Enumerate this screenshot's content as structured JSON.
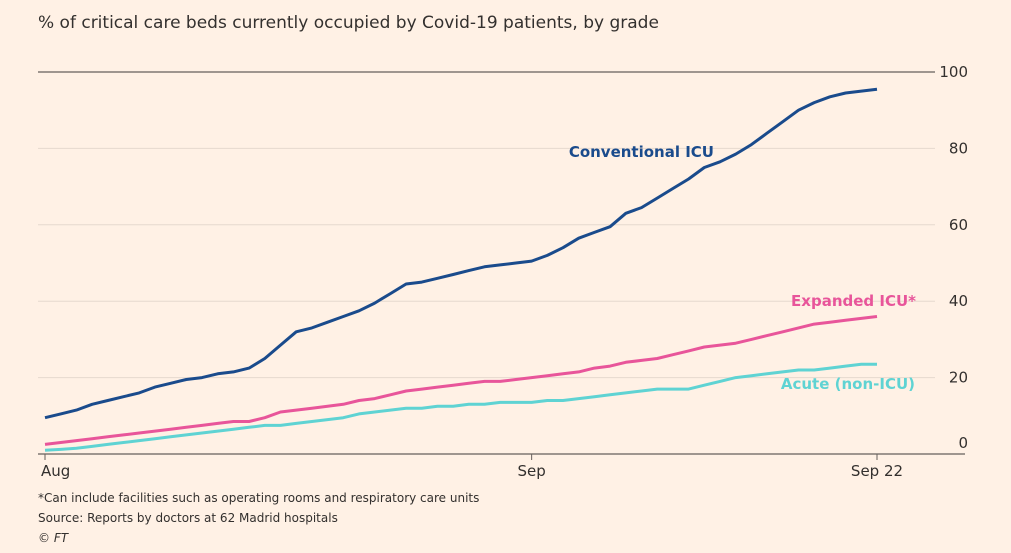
{
  "chart_data": {
    "type": "line",
    "title": "% of critical care beds currently occupied by Covid-19 patients, by grade",
    "categories": [
      "Aug",
      null,
      null,
      null,
      null,
      null,
      null,
      null,
      null,
      null,
      null,
      null,
      null,
      null,
      null,
      null,
      null,
      null,
      null,
      null,
      null,
      null,
      null,
      null,
      null,
      null,
      null,
      null,
      null,
      null,
      null,
      "Sep",
      null,
      null,
      null,
      null,
      null,
      null,
      null,
      null,
      null,
      null,
      null,
      null,
      null,
      null,
      null,
      null,
      null,
      null,
      null,
      null,
      null,
      "Sep 22"
    ],
    "series": [
      {
        "name": "Conventional ICU",
        "color": "#1a4b8c",
        "values": [
          9.5,
          10.5,
          11.5,
          13,
          14,
          15,
          16,
          17.5,
          18.5,
          19.5,
          20,
          21,
          21.5,
          22.5,
          25,
          28.5,
          32,
          33,
          34.5,
          36,
          37.5,
          39.5,
          42,
          44.5,
          45,
          46,
          47,
          48,
          49,
          49.5,
          50,
          50.5,
          52,
          54,
          56.5,
          58,
          59.5,
          63,
          64.5,
          67,
          69.5,
          72,
          75,
          76.5,
          78.5,
          81,
          84,
          87,
          90,
          92,
          93.5,
          94.5,
          95,
          95.5
        ]
      },
      {
        "name": "Expanded ICU*",
        "color": "#e8559a",
        "values": [
          2.5,
          3,
          3.5,
          4,
          4.5,
          5,
          5.5,
          6,
          6.5,
          7,
          7.5,
          8,
          8.5,
          8.5,
          9.5,
          11,
          11.5,
          12,
          12.5,
          13,
          14,
          14.5,
          15.5,
          16.5,
          17,
          17.5,
          18,
          18.5,
          19,
          19,
          19.5,
          20,
          20.5,
          21,
          21.5,
          22.5,
          23,
          24,
          24.5,
          25,
          26,
          27,
          28,
          28.5,
          29,
          30,
          31,
          32,
          33,
          34,
          34.5,
          35,
          35.5,
          36
        ]
      },
      {
        "name": "Acute (non-ICU)",
        "color": "#5fd3d3",
        "values": [
          1,
          1.2,
          1.5,
          2,
          2.5,
          3,
          3.5,
          4,
          4.5,
          5,
          5.5,
          6,
          6.5,
          7,
          7.5,
          7.5,
          8,
          8.5,
          9,
          9.5,
          10.5,
          11,
          11.5,
          12,
          12,
          12.5,
          12.5,
          13,
          13,
          13.5,
          13.5,
          13.5,
          14,
          14,
          14.5,
          15,
          15.5,
          16,
          16.5,
          17,
          17,
          17,
          18,
          19,
          20,
          20.5,
          21,
          21.5,
          22,
          22,
          22.5,
          23,
          23.5,
          23.5
        ]
      }
    ],
    "ylim": [
      0,
      100
    ],
    "yticks": [
      0,
      20,
      40,
      60,
      80,
      100
    ],
    "grid": true,
    "footnotes": [
      "*Can include facilities such as operating rooms and respiratory care units",
      "Source: Reports by doctors at 62 Madrid hospitals",
      "© FT"
    ]
  }
}
